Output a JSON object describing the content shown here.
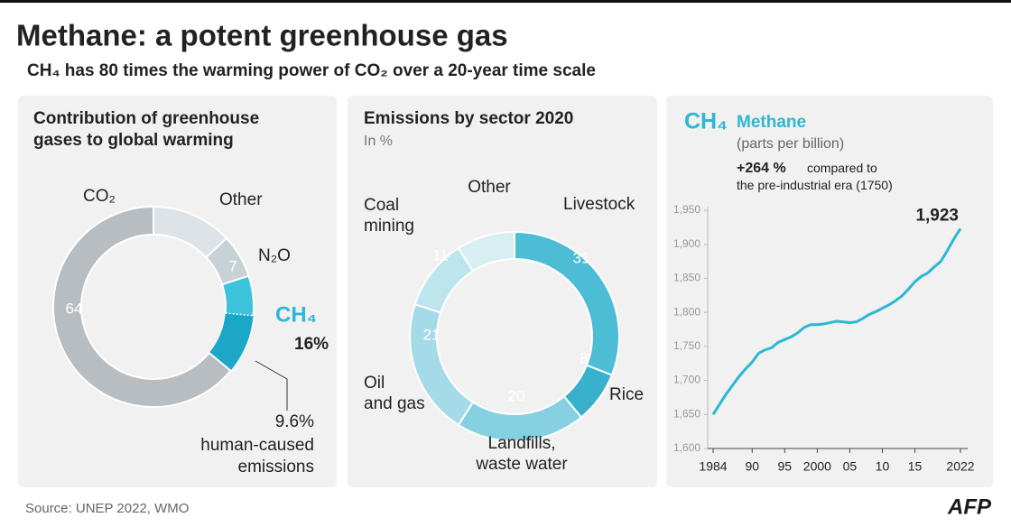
{
  "title": "Methane: a potent greenhouse gas",
  "subtitle": "CH₄ has 80 times the warming power of CO₂ over a 20-year time scale",
  "source": "Source: UNEP 2022, WMO",
  "logo": "AFP",
  "chart_data": [
    {
      "type": "donut",
      "title": "Contribution of greenhouse\ngases to global warming",
      "categories": [
        "Other",
        "N₂O",
        "CH₄",
        "CO₂"
      ],
      "values": [
        13,
        7,
        16,
        64
      ],
      "value_labels": [
        null,
        "7",
        "16%",
        "64"
      ],
      "colors": [
        "#dde3e6",
        "#c7d1d6",
        "#3ec3dc",
        "#b7bdc1"
      ],
      "highlight": {
        "category": 2,
        "value": 9.6,
        "label": "9.6%",
        "text": "human-caused\nemissions",
        "color": "#1ca6c8"
      }
    },
    {
      "type": "donut",
      "title": "Emissions by sector 2020",
      "subtitle": "In %",
      "categories": [
        "Livestock",
        "Rice",
        "Landfills,\nwaste water",
        "Oil\nand gas",
        "Coal\nmining",
        "Other"
      ],
      "values": [
        31,
        8,
        20,
        21,
        11,
        9
      ],
      "colors": [
        "#4cbdd4",
        "#39b1cd",
        "#85d1e1",
        "#a5dbe8",
        "#bde5ee",
        "#d7eef3"
      ]
    },
    {
      "type": "line",
      "symbol": "CH₄",
      "subtitle": "(parts per billion)",
      "annotation": {
        "value": "+264 %",
        "text": "compared to\nthe pre-industrial era (1750)"
      },
      "x": [
        1984,
        1985,
        1986,
        1987,
        1988,
        1989,
        1990,
        1991,
        1992,
        1993,
        1994,
        1995,
        1996,
        1997,
        1998,
        1999,
        2000,
        2001,
        2002,
        2003,
        2004,
        2005,
        2006,
        2007,
        2008,
        2009,
        2010,
        2011,
        2012,
        2013,
        2014,
        2015,
        2016,
        2017,
        2018,
        2019,
        2020,
        2021,
        2022
      ],
      "series": [
        {
          "name": "Methane",
          "color": "#2bb8d3",
          "values": [
            1650,
            1665,
            1680,
            1693,
            1706,
            1717,
            1727,
            1740,
            1745,
            1748,
            1756,
            1760,
            1764,
            1770,
            1778,
            1782,
            1782,
            1783,
            1785,
            1787,
            1786,
            1785,
            1786,
            1791,
            1797,
            1801,
            1806,
            1811,
            1817,
            1824,
            1834,
            1845,
            1853,
            1858,
            1867,
            1875,
            1891,
            1908,
            1923
          ],
          "value_labels": [
            null,
            null,
            null,
            null,
            null,
            null,
            null,
            null,
            null,
            null,
            null,
            null,
            null,
            null,
            null,
            null,
            null,
            null,
            null,
            null,
            null,
            null,
            null,
            null,
            null,
            null,
            null,
            null,
            null,
            null,
            null,
            null,
            null,
            null,
            null,
            null,
            null,
            null,
            "1,923"
          ]
        }
      ],
      "xlim": [
        1984,
        2022
      ],
      "xticks": [
        1984,
        {
          "value": 1990,
          "label": "90"
        },
        {
          "value": 1995,
          "label": "95"
        },
        2000,
        {
          "value": 2005,
          "label": "05"
        },
        {
          "value": 2010,
          "label": "10"
        },
        {
          "value": 2015,
          "label": "15"
        },
        2022
      ],
      "ylim": [
        1600,
        1950
      ],
      "yticks": [
        {
          "value": 1600,
          "label": "1,600"
        },
        {
          "value": 1650,
          "label": "1,650"
        },
        {
          "value": 1700,
          "label": "1,700"
        },
        {
          "value": 1750,
          "label": "1,750"
        },
        {
          "value": 1800,
          "label": "1,800"
        },
        {
          "value": 1850,
          "label": "1,850"
        },
        {
          "value": 1900,
          "label": "1,900"
        },
        {
          "value": 1950,
          "label": "1,950"
        }
      ]
    }
  ]
}
